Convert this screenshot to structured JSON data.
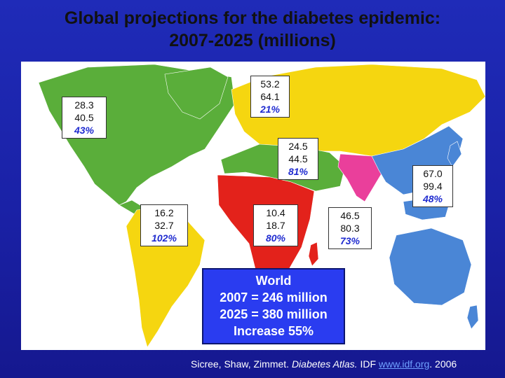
{
  "title": {
    "line1": "Global  projections for the diabetes epidemic:",
    "line2": "2007-2025 (millions)"
  },
  "colors": {
    "north_america": "#5aae3a",
    "south_america": "#f5d610",
    "europe": "#f5d610",
    "middle_east": "#5aae3a",
    "africa": "#e3221b",
    "south_asia": "#ea3f9b",
    "western_pacific": "#4a86d6",
    "ocean": "#ffffff",
    "background": "#1f2bb8",
    "world_box": "#2a3cf0"
  },
  "regions": {
    "north_america": {
      "v2007": "28.3",
      "v2025": "40.5",
      "pct": "43%"
    },
    "europe": {
      "v2007": "53.2",
      "v2025": "64.1",
      "pct": "21%"
    },
    "middle_east": {
      "v2007": "24.5",
      "v2025": "44.5",
      "pct": "81%"
    },
    "western_pacific": {
      "v2007": "67.0",
      "v2025": "99.4",
      "pct": "48%"
    },
    "south_america": {
      "v2007": "16.2",
      "v2025": "32.7",
      "pct": "102%"
    },
    "africa": {
      "v2007": "10.4",
      "v2025": "18.7",
      "pct": "80%"
    },
    "south_asia": {
      "v2007": "46.5",
      "v2025": "80.3",
      "pct": "73%"
    }
  },
  "world": {
    "label": "World",
    "line2007": "2007 = 246 million",
    "line2025": "2025 = 380 million",
    "increase": "Increase 55%"
  },
  "source": {
    "authors": "Sicree, Shaw, Zimmet.",
    "publication": "Diabetes Atlas.",
    "org": "IDF",
    "link": "www.idf.org",
    "year": ". 2006"
  }
}
